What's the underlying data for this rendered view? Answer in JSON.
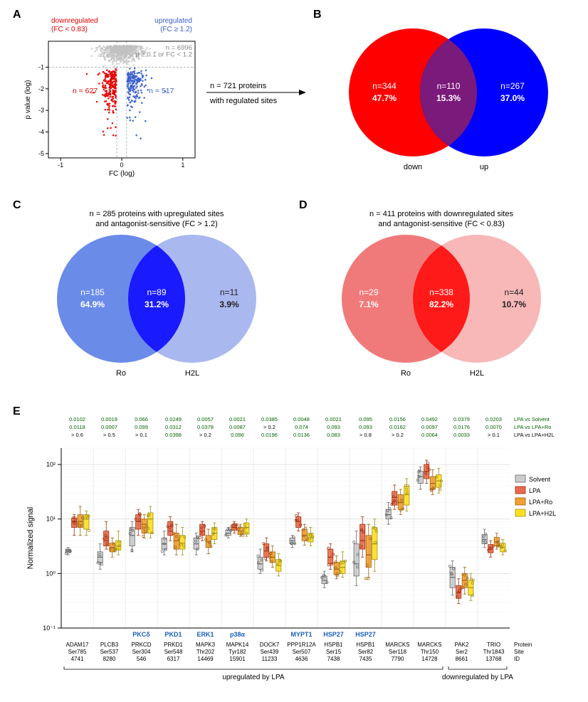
{
  "panelA": {
    "label": "A",
    "chart": {
      "type": "scatter",
      "xlabel": "FC (log)",
      "ylabel": "p value (log)",
      "xlim": [
        -1.2,
        1.2
      ],
      "ylim": [
        0.2,
        -5.2
      ],
      "xticks": [
        -1,
        0,
        1
      ],
      "yticks": [
        -1,
        -2,
        -3,
        -4,
        -5
      ],
      "grid_color": "#aaaaaa",
      "label_fontsize": 10,
      "tick_fontsize": 9,
      "vline1_x": -0.081,
      "vline2_x": 0.079,
      "hline_y": -1.0,
      "colors": {
        "down": "#e40000",
        "up": "#3a5fcd",
        "ns": "#c0c0c0"
      },
      "marker_size": 1.3,
      "down_label": {
        "line1": "downregulated",
        "line2": "(FC < 0.83)",
        "color": "#e40000"
      },
      "up_label": {
        "line1": "upregulated",
        "line2": "(FC ≥ 1.2)",
        "color": "#3a5fcd"
      },
      "n_down": {
        "text": "n = 627",
        "color": "#e40000"
      },
      "n_up": {
        "text": "n = 517",
        "color": "#3a5fcd"
      },
      "ns_label": {
        "line1": "p ≥ 0.1 or FC < 1.2",
        "line2": "n = 6996",
        "color": "#888888"
      }
    },
    "annotation": {
      "line1": "n = 721 proteins",
      "line2": "with regulated sites"
    }
  },
  "panelB": {
    "label": "B",
    "venn": {
      "left": {
        "n": "n=344",
        "pct": "47.7%",
        "label": "down",
        "color": "#ff0000"
      },
      "overlap": {
        "n": "n=110",
        "pct": "15.3%",
        "color": "#7a1a7a"
      },
      "right": {
        "n": "n=267",
        "pct": "37.0%",
        "label": "up",
        "color": "#0000ff"
      },
      "text_color": "#ffffff",
      "fontsize": 12
    }
  },
  "panelC": {
    "label": "C",
    "title": {
      "line1": "n = 285 proteins with upregulated sites",
      "line2": "and antagonist-sensitive  (FC > 1.2)"
    },
    "venn": {
      "left": {
        "n": "n=185",
        "pct": "64.9%",
        "label": "Ro",
        "color": "#6a8be8"
      },
      "overlap": {
        "n": "n=89",
        "pct": "31.2%",
        "color": "#1a1aff"
      },
      "right": {
        "n": "n=11",
        "pct": "3.9%",
        "label": "H2L",
        "color": "#aab8f0"
      },
      "text_left_color": "#ffffff",
      "text_overlap_color": "#ffffff",
      "text_right_color": "#222222",
      "fontsize": 12
    }
  },
  "panelD": {
    "label": "D",
    "title": {
      "line1": "n = 411 proteins with downregulated sites",
      "line2": "and antagonist-sensitive  (FC < 0.83)"
    },
    "venn": {
      "left": {
        "n": "n=29",
        "pct": "7.1%",
        "label": "Ro",
        "color": "#f07a7a"
      },
      "overlap": {
        "n": "n=338",
        "pct": "82.2%",
        "color": "#ff1a1a"
      },
      "right": {
        "n": "n=44",
        "pct": "10.7%",
        "label": "H2L",
        "color": "#f8b8b8"
      },
      "text_left_color": "#ffffff",
      "text_overlap_color": "#ffffff",
      "text_right_color": "#222222",
      "fontsize": 12
    }
  },
  "panelE": {
    "label": "E",
    "ylabel": "Normalized signal",
    "yscale": "log",
    "ylim": [
      0.1,
      200
    ],
    "yticks": [
      0.1,
      1,
      10,
      100
    ],
    "ytick_labels": [
      "10⁻¹",
      "10⁰",
      "10¹",
      "10²"
    ],
    "grid_color": "#d8d8d8",
    "label_fontsize": 11,
    "tick_fontsize": 9,
    "pvalue_fontsize": 7.5,
    "pvalue_rows": [
      "LPA vs Solvent",
      "LPA vs LPA+Ro",
      "LPA vs LPA+H2L"
    ],
    "pvalue_row_colors": [
      "#006400",
      "#006400",
      "#000000"
    ],
    "xaxis_label_rows": [
      "Protein",
      "Site",
      "ID"
    ],
    "conditions": [
      {
        "name": "Solvent",
        "fill": "#cccccc",
        "stroke": "#666666"
      },
      {
        "name": "LPA",
        "fill": "#e86a4a",
        "stroke": "#a03010"
      },
      {
        "name": "LPA+Ro",
        "fill": "#f0a030",
        "stroke": "#a06010"
      },
      {
        "name": "LPA+H2L",
        "fill": "#ffe020",
        "stroke": "#a09010"
      }
    ],
    "regulation_bars": [
      {
        "label": "upregulated  by  LPA",
        "start": 0,
        "end": 11
      },
      {
        "label": "downregulated  by  LPA",
        "start": 12,
        "end": 13
      }
    ],
    "proteins": [
      {
        "protein": "ADAM17",
        "site": "Ser785",
        "id": "4741",
        "alias": "",
        "pvals": [
          "0.0102",
          "0.0118",
          "> 0.6"
        ],
        "pcolors": [
          "#006400",
          "#006400",
          "#000000"
        ],
        "medians": [
          2.6,
          9,
          9,
          10
        ],
        "q1": [
          2.4,
          7,
          7,
          6.5
        ],
        "q3": [
          2.8,
          10.5,
          12,
          12
        ],
        "lo": [
          2.2,
          5,
          5,
          5
        ],
        "hi": [
          3.0,
          12,
          17,
          14
        ]
      },
      {
        "protein": "PLCB3",
        "site": "Ser537",
        "id": "8280",
        "alias": "",
        "pvals": [
          "0.0019",
          "0.0007",
          "> 0.5"
        ],
        "pcolors": [
          "#006400",
          "#006400",
          "#000000"
        ],
        "medians": [
          2,
          4,
          3,
          3.2
        ],
        "q1": [
          1.6,
          3.2,
          2.5,
          2.7
        ],
        "q3": [
          2.5,
          6,
          3.6,
          4
        ],
        "lo": [
          1.2,
          2.8,
          2,
          2.2
        ],
        "hi": [
          3.5,
          9,
          4.5,
          6
        ]
      },
      {
        "protein": "PRKCD",
        "site": "Ser304",
        "id": "546",
        "alias": "PKCδ",
        "pvals": [
          "0.066",
          "0.099",
          "> 0.1"
        ],
        "pcolors": [
          "#006400",
          "#006400",
          "#000000"
        ],
        "medians": [
          5,
          9,
          8,
          10
        ],
        "q1": [
          3.2,
          6.5,
          5.5,
          5.5
        ],
        "q3": [
          7,
          12,
          10,
          13
        ],
        "lo": [
          2.5,
          5,
          4.5,
          4.5
        ],
        "hi": [
          9,
          15,
          12,
          17
        ]
      },
      {
        "protein": "PRKD1",
        "site": "Ser548",
        "id": "6317",
        "alias": "PKD1",
        "pvals": [
          "0.0249",
          "0.0312",
          "0.0398"
        ],
        "pcolors": [
          "#006400",
          "#006400",
          "#006400"
        ],
        "medians": [
          3.5,
          6,
          4,
          3.6
        ],
        "q1": [
          2.8,
          5,
          2.8,
          2.8
        ],
        "q3": [
          4.5,
          9,
          5.5,
          5
        ],
        "lo": [
          2.2,
          4,
          2.2,
          2.2
        ],
        "hi": [
          6,
          11,
          8,
          7
        ]
      },
      {
        "protein": "MAPK3",
        "site": "Thr202",
        "id": "14469",
        "alias": "ERK1",
        "pvals": [
          "0.0057",
          "0.0378",
          "> 0.2"
        ],
        "pcolors": [
          "#006400",
          "#006400",
          "#000000"
        ],
        "medians": [
          3.5,
          6,
          3.8,
          5.5
        ],
        "q1": [
          2.8,
          5,
          3,
          4.2
        ],
        "q3": [
          4.5,
          8,
          5,
          7
        ],
        "lo": [
          2.2,
          4,
          2.3,
          3.5
        ],
        "hi": [
          5.5,
          9,
          6.5,
          8.5
        ]
      },
      {
        "protein": "MAPK14",
        "site": "Tyr182",
        "id": "15901",
        "alias": "p38α",
        "pvals": [
          "0.0021",
          "0.0087",
          "0.096"
        ],
        "pcolors": [
          "#006400",
          "#006400",
          "#006400"
        ],
        "medians": [
          5.5,
          7,
          6,
          7
        ],
        "q1": [
          5,
          6.2,
          5.2,
          5.3
        ],
        "q3": [
          6.3,
          8,
          7,
          8.5
        ],
        "lo": [
          4.5,
          5.5,
          4.8,
          4.8
        ],
        "hi": [
          7,
          9,
          8,
          10
        ]
      },
      {
        "protein": "DOCK7",
        "site": "Ser439",
        "id": "11233",
        "alias": "",
        "pvals": [
          "0.0385",
          "> 0.2",
          "0.0196"
        ],
        "pcolors": [
          "#006400",
          "#000000",
          "#006400"
        ],
        "medians": [
          1.5,
          2.6,
          2,
          1.4
        ],
        "q1": [
          1.2,
          2,
          1.6,
          1.1
        ],
        "q3": [
          2,
          3.5,
          2.5,
          1.8
        ],
        "lo": [
          1,
          1.7,
          1.3,
          0.9
        ],
        "hi": [
          2.8,
          4.5,
          3.2,
          2.3
        ]
      },
      {
        "protein": "PPP1R12A",
        "site": "Ser507",
        "id": "4636",
        "alias": "MYPT1",
        "pvals": [
          "0.0048",
          "0.074",
          "0.0136"
        ],
        "pcolors": [
          "#006400",
          "#006400",
          "#006400"
        ],
        "medians": [
          4,
          9,
          5,
          4.5
        ],
        "q1": [
          3.5,
          7,
          4,
          3.8
        ],
        "q3": [
          4.5,
          11,
          6.5,
          5.5
        ],
        "lo": [
          3,
          6,
          3.3,
          3.2
        ],
        "hi": [
          5,
          13,
          8,
          7
        ]
      },
      {
        "protein": "HSPB1",
        "site": "Ser15",
        "id": "7438",
        "alias": "HSP27",
        "pvals": [
          "0.0021",
          "0.093",
          "0.083"
        ],
        "pcolors": [
          "#006400",
          "#006400",
          "#006400"
        ],
        "medians": [
          0.75,
          2,
          1.2,
          1.3
        ],
        "q1": [
          0.65,
          1.5,
          0.95,
          1
        ],
        "q3": [
          0.9,
          2.8,
          1.6,
          1.7
        ],
        "lo": [
          0.55,
          1.2,
          0.8,
          0.85
        ],
        "hi": [
          1.1,
          3.5,
          2.1,
          2.5
        ]
      },
      {
        "protein": "HSPB1",
        "site": "Ser82",
        "id": "7435",
        "alias": "HSP27",
        "pvals": [
          "0.095",
          "0.093",
          "> 0.8"
        ],
        "pcolors": [
          "#006400",
          "#006400",
          "#000000"
        ],
        "medians": [
          1.5,
          4,
          2.2,
          3.5
        ],
        "q1": [
          0.9,
          2.8,
          1.3,
          1.8
        ],
        "q3": [
          3.5,
          8,
          5,
          7
        ],
        "lo": [
          0.6,
          2,
          0.85,
          1.1
        ],
        "hi": [
          6,
          11,
          8,
          10
        ]
      },
      {
        "protein": "MARCKS",
        "site": "Ser118",
        "id": "7790",
        "alias": "",
        "pvals": [
          "0.0156",
          "0.0162",
          "> 0.2"
        ],
        "pcolors": [
          "#006400",
          "#006400",
          "#000000"
        ],
        "medians": [
          12,
          25,
          20,
          28
        ],
        "q1": [
          10,
          18,
          15,
          18
        ],
        "q3": [
          15,
          32,
          28,
          40
        ],
        "lo": [
          8,
          15,
          12,
          14
        ],
        "hi": [
          20,
          42,
          35,
          55
        ]
      },
      {
        "protein": "MARCKS",
        "site": "Thr150",
        "id": "14728",
        "alias": "",
        "pvals": [
          "0.0492",
          "0.0097",
          "0.0064"
        ],
        "pcolors": [
          "#006400",
          "#006400",
          "#006400"
        ],
        "medians": [
          60,
          75,
          45,
          50
        ],
        "q1": [
          45,
          55,
          35,
          38
        ],
        "q3": [
          75,
          100,
          60,
          65
        ],
        "lo": [
          35,
          45,
          28,
          30
        ],
        "hi": [
          90,
          120,
          80,
          85
        ]
      },
      {
        "protein": "PAK2",
        "site": "Ser2",
        "id": "8661",
        "alias": "",
        "pvals": [
          "0.0379",
          "0.0176",
          "0.0033"
        ],
        "pcolors": [
          "#006400",
          "#006400",
          "#006400"
        ],
        "medians": [
          0.85,
          0.45,
          0.75,
          0.55
        ],
        "q1": [
          0.55,
          0.35,
          0.55,
          0.4
        ],
        "q3": [
          1.3,
          0.6,
          1,
          0.75
        ],
        "lo": [
          0.4,
          0.28,
          0.42,
          0.32
        ],
        "hi": [
          1.7,
          0.8,
          1.3,
          1
        ]
      },
      {
        "protein": "TRIO",
        "site": "Thr1843",
        "id": "13768",
        "alias": "",
        "pvals": [
          "0.0203",
          "0.0070",
          "> 0.1"
        ],
        "pcolors": [
          "#006400",
          "#006400",
          "#000000"
        ],
        "medians": [
          4.2,
          2.8,
          3.8,
          3
        ],
        "q1": [
          3.5,
          2.4,
          3.2,
          2.5
        ],
        "q3": [
          5.2,
          3.4,
          4.6,
          3.6
        ],
        "lo": [
          3,
          2,
          2.8,
          2.2
        ],
        "hi": [
          6.5,
          4,
          5.5,
          4.2
        ]
      }
    ]
  }
}
